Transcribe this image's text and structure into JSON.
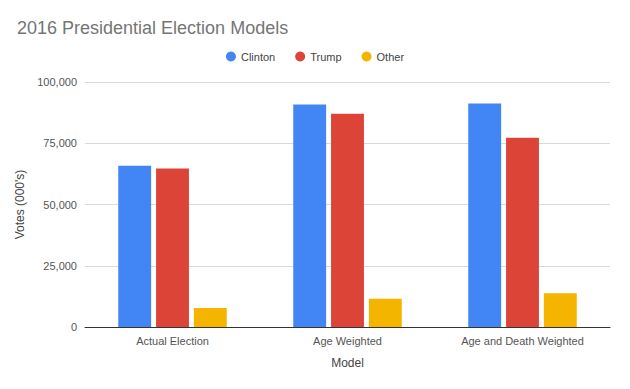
{
  "chart_data": {
    "type": "bar",
    "title": "2016 Presidential Election Models",
    "x_label": "Model",
    "y_label": "Votes (000's)",
    "categories": [
      "Actual Election",
      "Age Weighted",
      "Age and Death Weighted"
    ],
    "series": [
      {
        "name": "Clinton",
        "color": "#4285f4",
        "values": [
          65800,
          90800,
          91200
        ]
      },
      {
        "name": "Trump",
        "color": "#db4437",
        "values": [
          64700,
          87000,
          77200
        ]
      },
      {
        "name": "Other",
        "color": "#f4b400",
        "values": [
          7800,
          11500,
          13800
        ]
      }
    ],
    "ylim": [
      0,
      100000
    ],
    "yticks": [
      {
        "value": 0,
        "label": "0"
      },
      {
        "value": 25000,
        "label": "25,000"
      },
      {
        "value": 50000,
        "label": "50,000"
      },
      {
        "value": 75000,
        "label": "75,000"
      },
      {
        "value": 100000,
        "label": "100,000"
      }
    ],
    "grid": true,
    "legend": "top"
  }
}
